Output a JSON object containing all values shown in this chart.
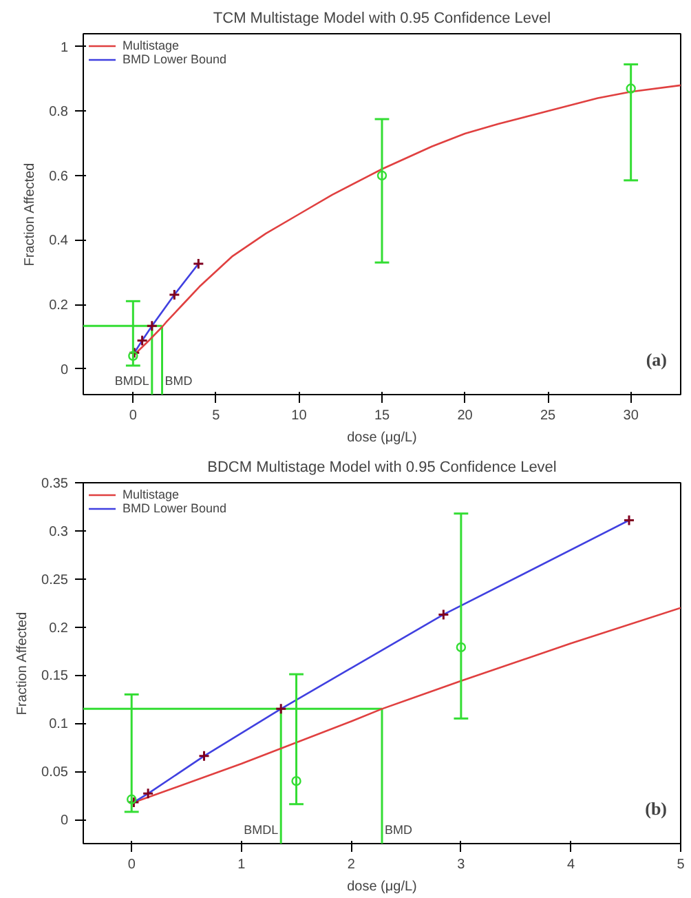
{
  "chart_data": [
    {
      "type": "line",
      "title": "TCM Multistage Model with 0.95 Confidence Level",
      "xlabel": "dose (μg/L)",
      "ylabel": "Fraction Affected",
      "xlim": [
        -3,
        33
      ],
      "ylim": [
        -0.08,
        1.04
      ],
      "xticks": [
        0,
        5,
        10,
        15,
        20,
        25,
        30
      ],
      "yticks": [
        0,
        0.2,
        0.4,
        0.6,
        0.8,
        1
      ],
      "legend": "top left",
      "series": [
        {
          "name": "Multistage",
          "color": "#e04040",
          "x": [
            0,
            1,
            1.75,
            2,
            3,
            4,
            6,
            8,
            10,
            12,
            15,
            18,
            20,
            22,
            25,
            28,
            30,
            33
          ],
          "values": [
            0.04,
            0.09,
            0.13,
            0.145,
            0.2,
            0.255,
            0.35,
            0.42,
            0.48,
            0.54,
            0.62,
            0.69,
            0.73,
            0.76,
            0.8,
            0.84,
            0.86,
            0.88
          ]
        },
        {
          "name": "BMD Lower Bound",
          "color": "#4040e0",
          "x": [
            0.08,
            0.55,
            1.14,
            2.49,
            3.94
          ],
          "values": [
            0.05,
            0.088,
            0.133,
            0.23,
            0.326
          ]
        },
        {
          "type": "scatter",
          "marker": "cross",
          "color": "#800020",
          "x": [
            0.08,
            0.55,
            1.14,
            2.49,
            3.94
          ],
          "values": [
            0.05,
            0.088,
            0.133,
            0.23,
            0.326
          ]
        },
        {
          "type": "scatter",
          "marker": "circle",
          "color": "#33dd33",
          "x": [
            0,
            15,
            30
          ],
          "values": [
            0.04,
            0.6,
            0.87
          ],
          "errors": [
            [
              0.01,
              0.21
            ],
            [
              0.33,
              0.775
            ],
            [
              0.585,
              0.945
            ]
          ]
        }
      ],
      "ref_lines": [
        {
          "axis": "x",
          "value": 1.14,
          "label": "BMDL",
          "color": "#33dd33"
        },
        {
          "axis": "x",
          "value": 1.75,
          "label": "BMD",
          "color": "#33dd33"
        },
        {
          "axis": "y",
          "value": 0.133,
          "label": null,
          "color": "#33dd33"
        }
      ],
      "annotations": [
        "(a)"
      ]
    },
    {
      "type": "line",
      "title": "BDCM Multistage Model with 0.95 Confidence Level",
      "xlabel": "dose (μg/L)",
      "ylabel": "Fraction Affected",
      "xlim": [
        -0.44,
        5
      ],
      "ylim": [
        -0.025,
        0.35
      ],
      "xticks": [
        0,
        1,
        2,
        3,
        4,
        5
      ],
      "yticks": [
        0,
        0.05,
        0.1,
        0.15,
        0.2,
        0.25,
        0.3,
        0.35
      ],
      "legend": "top left",
      "series": [
        {
          "name": "Multistage",
          "color": "#e04040",
          "x": [
            0,
            1,
            2,
            2.28,
            3,
            4,
            5
          ],
          "values": [
            0.017,
            0.058,
            0.102,
            0.115,
            0.144,
            0.183,
            0.22
          ]
        },
        {
          "name": "BMD Lower Bound",
          "color": "#4040e0",
          "x": [
            0.02,
            0.15,
            0.66,
            1.36,
            2.84,
            4.53
          ],
          "values": [
            0.018,
            0.027,
            0.066,
            0.115,
            0.213,
            0.311
          ]
        },
        {
          "type": "scatter",
          "marker": "cross",
          "color": "#800020",
          "x": [
            0.02,
            0.15,
            0.66,
            1.36,
            2.84,
            4.53
          ],
          "values": [
            0.018,
            0.027,
            0.066,
            0.115,
            0.213,
            0.311
          ]
        },
        {
          "type": "scatter",
          "marker": "circle",
          "color": "#33dd33",
          "x": [
            0,
            1.5,
            3
          ],
          "values": [
            0.021,
            0.04,
            0.179
          ],
          "errors": [
            [
              0.008,
              0.13
            ],
            [
              0.016,
              0.151
            ],
            [
              0.105,
              0.318
            ]
          ]
        }
      ],
      "ref_lines": [
        {
          "axis": "x",
          "value": 1.36,
          "label": "BMDL",
          "color": "#33dd33"
        },
        {
          "axis": "x",
          "value": 2.28,
          "label": "BMD",
          "color": "#33dd33"
        },
        {
          "axis": "y",
          "value": 0.115,
          "label": null,
          "color": "#33dd33"
        }
      ],
      "annotations": [
        "(b)"
      ]
    }
  ]
}
